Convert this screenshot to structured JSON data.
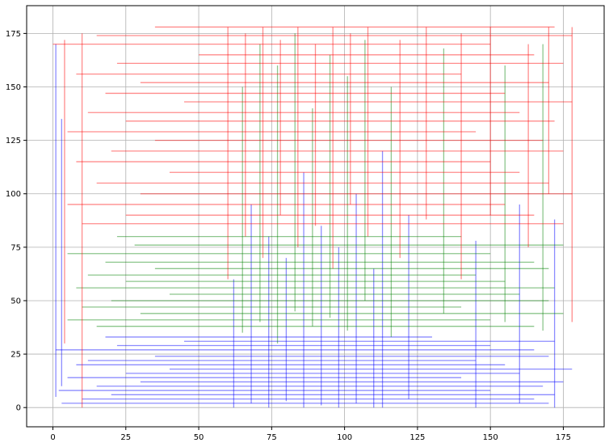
{
  "chart_data": {
    "type": "line",
    "title": "",
    "xlabel": "",
    "ylabel": "",
    "xlim": [
      -9,
      189
    ],
    "ylim": [
      -9,
      188
    ],
    "x_ticks": [
      0,
      25,
      50,
      75,
      100,
      125,
      150,
      175
    ],
    "y_ticks": [
      0,
      25,
      50,
      75,
      100,
      125,
      150,
      175
    ],
    "x_tick_labels": [
      "0",
      "25",
      "50",
      "75",
      "100",
      "125",
      "150",
      "175"
    ],
    "y_tick_labels": [
      "0",
      "25",
      "50",
      "75",
      "100",
      "125",
      "150",
      "175"
    ],
    "grid": true,
    "legend": "none",
    "colors": {
      "red_group": "#ff0000",
      "green_group": "#008000",
      "blue_group": "#0000ff",
      "grid": "#b0b0b0",
      "frame": "#000000"
    },
    "series": [
      {
        "color": "#0000ff",
        "segments": [
          {
            "orientation": "h",
            "pos": 2,
            "from": 3,
            "to": 170
          },
          {
            "orientation": "h",
            "pos": 4,
            "from": 10,
            "to": 165
          },
          {
            "orientation": "h",
            "pos": 6,
            "from": 20,
            "to": 172
          },
          {
            "orientation": "h",
            "pos": 8,
            "from": 2,
            "to": 150
          },
          {
            "orientation": "h",
            "pos": 10,
            "from": 15,
            "to": 168
          },
          {
            "orientation": "h",
            "pos": 12,
            "from": 30,
            "to": 175
          },
          {
            "orientation": "h",
            "pos": 14,
            "from": 5,
            "to": 140
          },
          {
            "orientation": "h",
            "pos": 16,
            "from": 25,
            "to": 160
          },
          {
            "orientation": "h",
            "pos": 18,
            "from": 40,
            "to": 178
          },
          {
            "orientation": "h",
            "pos": 20,
            "from": 8,
            "to": 155
          },
          {
            "orientation": "h",
            "pos": 22,
            "from": 12,
            "to": 145
          },
          {
            "orientation": "h",
            "pos": 24,
            "from": 35,
            "to": 170
          },
          {
            "orientation": "h",
            "pos": 27,
            "from": 1,
            "to": 165
          },
          {
            "orientation": "h",
            "pos": 29,
            "from": 22,
            "to": 150
          },
          {
            "orientation": "h",
            "pos": 31,
            "from": 45,
            "to": 172
          },
          {
            "orientation": "h",
            "pos": 33,
            "from": 18,
            "to": 130
          },
          {
            "orientation": "v",
            "pos": 62,
            "from": 0,
            "to": 60
          },
          {
            "orientation": "v",
            "pos": 68,
            "from": 2,
            "to": 95
          },
          {
            "orientation": "v",
            "pos": 74,
            "from": 0,
            "to": 80
          },
          {
            "orientation": "v",
            "pos": 80,
            "from": 3,
            "to": 70
          },
          {
            "orientation": "v",
            "pos": 86,
            "from": 0,
            "to": 110
          },
          {
            "orientation": "v",
            "pos": 92,
            "from": 1,
            "to": 85
          },
          {
            "orientation": "v",
            "pos": 98,
            "from": 0,
            "to": 75
          },
          {
            "orientation": "v",
            "pos": 104,
            "from": 2,
            "to": 100
          },
          {
            "orientation": "v",
            "pos": 110,
            "from": 0,
            "to": 65
          },
          {
            "orientation": "v",
            "pos": 113,
            "from": 0,
            "to": 120
          },
          {
            "orientation": "v",
            "pos": 122,
            "from": 4,
            "to": 90
          },
          {
            "orientation": "v",
            "pos": 145,
            "from": 0,
            "to": 78
          },
          {
            "orientation": "v",
            "pos": 160,
            "from": 2,
            "to": 95
          },
          {
            "orientation": "v",
            "pos": 172,
            "from": 0,
            "to": 88
          },
          {
            "orientation": "v",
            "pos": 1,
            "from": 5,
            "to": 170
          },
          {
            "orientation": "v",
            "pos": 3,
            "from": 10,
            "to": 135
          }
        ]
      },
      {
        "color": "#008000",
        "segments": [
          {
            "orientation": "h",
            "pos": 38,
            "from": 15,
            "to": 165
          },
          {
            "orientation": "h",
            "pos": 41,
            "from": 5,
            "to": 150
          },
          {
            "orientation": "h",
            "pos": 44,
            "from": 30,
            "to": 175
          },
          {
            "orientation": "h",
            "pos": 47,
            "from": 10,
            "to": 140
          },
          {
            "orientation": "h",
            "pos": 50,
            "from": 20,
            "to": 170
          },
          {
            "orientation": "h",
            "pos": 53,
            "from": 40,
            "to": 160
          },
          {
            "orientation": "h",
            "pos": 56,
            "from": 8,
            "to": 172
          },
          {
            "orientation": "h",
            "pos": 59,
            "from": 25,
            "to": 155
          },
          {
            "orientation": "h",
            "pos": 62,
            "from": 12,
            "to": 145
          },
          {
            "orientation": "h",
            "pos": 65,
            "from": 35,
            "to": 170
          },
          {
            "orientation": "h",
            "pos": 68,
            "from": 18,
            "to": 165
          },
          {
            "orientation": "h",
            "pos": 72,
            "from": 5,
            "to": 150
          },
          {
            "orientation": "h",
            "pos": 76,
            "from": 28,
            "to": 175
          },
          {
            "orientation": "h",
            "pos": 80,
            "from": 22,
            "to": 140
          },
          {
            "orientation": "v",
            "pos": 65,
            "from": 35,
            "to": 150
          },
          {
            "orientation": "v",
            "pos": 71,
            "from": 40,
            "to": 170
          },
          {
            "orientation": "v",
            "pos": 77,
            "from": 30,
            "to": 160
          },
          {
            "orientation": "v",
            "pos": 83,
            "from": 45,
            "to": 175
          },
          {
            "orientation": "v",
            "pos": 89,
            "from": 38,
            "to": 140
          },
          {
            "orientation": "v",
            "pos": 95,
            "from": 42,
            "to": 165
          },
          {
            "orientation": "v",
            "pos": 101,
            "from": 36,
            "to": 155
          },
          {
            "orientation": "v",
            "pos": 107,
            "from": 50,
            "to": 172
          },
          {
            "orientation": "v",
            "pos": 116,
            "from": 33,
            "to": 150
          },
          {
            "orientation": "v",
            "pos": 134,
            "from": 44,
            "to": 168
          },
          {
            "orientation": "v",
            "pos": 155,
            "from": 40,
            "to": 160
          },
          {
            "orientation": "v",
            "pos": 168,
            "from": 36,
            "to": 170
          }
        ]
      },
      {
        "color": "#ff0000",
        "segments": [
          {
            "orientation": "h",
            "pos": 86,
            "from": 10,
            "to": 175
          },
          {
            "orientation": "h",
            "pos": 90,
            "from": 25,
            "to": 165
          },
          {
            "orientation": "h",
            "pos": 95,
            "from": 5,
            "to": 155
          },
          {
            "orientation": "h",
            "pos": 100,
            "from": 30,
            "to": 178
          },
          {
            "orientation": "h",
            "pos": 105,
            "from": 15,
            "to": 170
          },
          {
            "orientation": "h",
            "pos": 110,
            "from": 40,
            "to": 160
          },
          {
            "orientation": "h",
            "pos": 115,
            "from": 8,
            "to": 150
          },
          {
            "orientation": "h",
            "pos": 120,
            "from": 20,
            "to": 175
          },
          {
            "orientation": "h",
            "pos": 125,
            "from": 35,
            "to": 168
          },
          {
            "orientation": "h",
            "pos": 129,
            "from": 5,
            "to": 145
          },
          {
            "orientation": "h",
            "pos": 134,
            "from": 25,
            "to": 172
          },
          {
            "orientation": "h",
            "pos": 138,
            "from": 12,
            "to": 160
          },
          {
            "orientation": "h",
            "pos": 143,
            "from": 45,
            "to": 178
          },
          {
            "orientation": "h",
            "pos": 147,
            "from": 18,
            "to": 155
          },
          {
            "orientation": "h",
            "pos": 152,
            "from": 30,
            "to": 170
          },
          {
            "orientation": "h",
            "pos": 156,
            "from": 8,
            "to": 140
          },
          {
            "orientation": "h",
            "pos": 161,
            "from": 22,
            "to": 175
          },
          {
            "orientation": "h",
            "pos": 165,
            "from": 50,
            "to": 165
          },
          {
            "orientation": "h",
            "pos": 170,
            "from": 0,
            "to": 150
          },
          {
            "orientation": "h",
            "pos": 174,
            "from": 15,
            "to": 178
          },
          {
            "orientation": "h",
            "pos": 178,
            "from": 35,
            "to": 172
          },
          {
            "orientation": "v",
            "pos": 60,
            "from": 60,
            "to": 178
          },
          {
            "orientation": "v",
            "pos": 66,
            "from": 80,
            "to": 175
          },
          {
            "orientation": "v",
            "pos": 72,
            "from": 70,
            "to": 178
          },
          {
            "orientation": "v",
            "pos": 78,
            "from": 90,
            "to": 172
          },
          {
            "orientation": "v",
            "pos": 84,
            "from": 75,
            "to": 178
          },
          {
            "orientation": "v",
            "pos": 90,
            "from": 85,
            "to": 170
          },
          {
            "orientation": "v",
            "pos": 96,
            "from": 65,
            "to": 178
          },
          {
            "orientation": "v",
            "pos": 102,
            "from": 95,
            "to": 175
          },
          {
            "orientation": "v",
            "pos": 108,
            "from": 80,
            "to": 178
          },
          {
            "orientation": "v",
            "pos": 119,
            "from": 70,
            "to": 172
          },
          {
            "orientation": "v",
            "pos": 128,
            "from": 88,
            "to": 178
          },
          {
            "orientation": "v",
            "pos": 140,
            "from": 60,
            "to": 175
          },
          {
            "orientation": "v",
            "pos": 150,
            "from": 90,
            "to": 178
          },
          {
            "orientation": "v",
            "pos": 163,
            "from": 75,
            "to": 170
          },
          {
            "orientation": "v",
            "pos": 170,
            "from": 100,
            "to": 178
          },
          {
            "orientation": "v",
            "pos": 178,
            "from": 40,
            "to": 178
          },
          {
            "orientation": "v",
            "pos": 10,
            "from": 0,
            "to": 175
          },
          {
            "orientation": "v",
            "pos": 4,
            "from": 30,
            "to": 172
          }
        ]
      }
    ]
  }
}
